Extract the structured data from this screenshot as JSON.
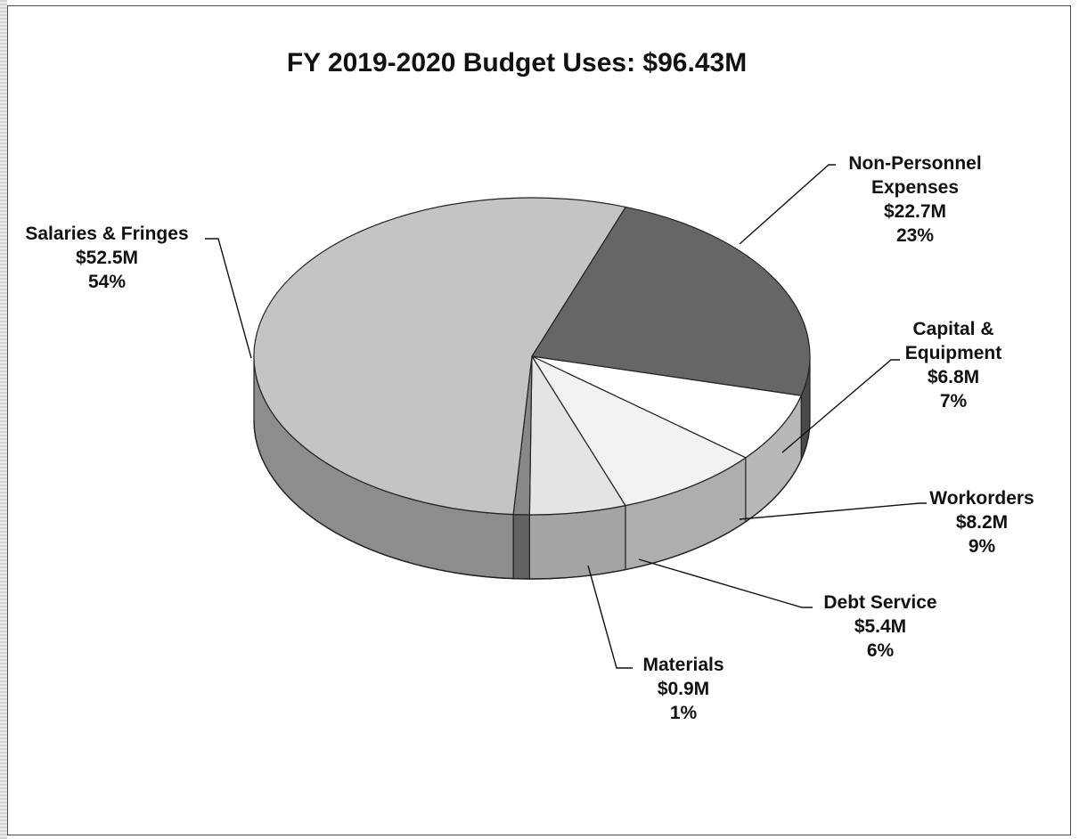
{
  "chart_data": {
    "type": "pie",
    "title": "FY 2019-2020 Budget Uses:  $96.43M",
    "slices": [
      {
        "name": "Non-Personnel Expenses",
        "lines": [
          "Non-Personnel",
          "Expenses"
        ],
        "amount_label": "$22.7M",
        "percent_label": "23%",
        "value": 22.7,
        "percent": 23,
        "color": "#666666"
      },
      {
        "name": "Capital & Equipment",
        "lines": [
          "Capital &",
          "Equipment"
        ],
        "amount_label": "$6.8M",
        "percent_label": "7%",
        "value": 6.8,
        "percent": 7,
        "color": "#ffffff"
      },
      {
        "name": "Workorders",
        "lines": [
          "Workorders"
        ],
        "amount_label": "$8.2M",
        "percent_label": "9%",
        "value": 8.2,
        "percent": 9,
        "color": "#f2f2f2"
      },
      {
        "name": "Debt Service",
        "lines": [
          "Debt Service"
        ],
        "amount_label": "$5.4M",
        "percent_label": "6%",
        "value": 5.4,
        "percent": 6,
        "color": "#e4e4e4"
      },
      {
        "name": "Materials",
        "lines": [
          "Materials"
        ],
        "amount_label": "$0.9M",
        "percent_label": "1%",
        "value": 0.9,
        "percent": 1,
        "color": "#888888"
      },
      {
        "name": "Salaries & Fringes",
        "lines": [
          "Salaries & Fringes"
        ],
        "amount_label": "$52.5M",
        "percent_label": "54%",
        "value": 52.5,
        "percent": 54,
        "color": "#c4c4c4"
      }
    ]
  }
}
